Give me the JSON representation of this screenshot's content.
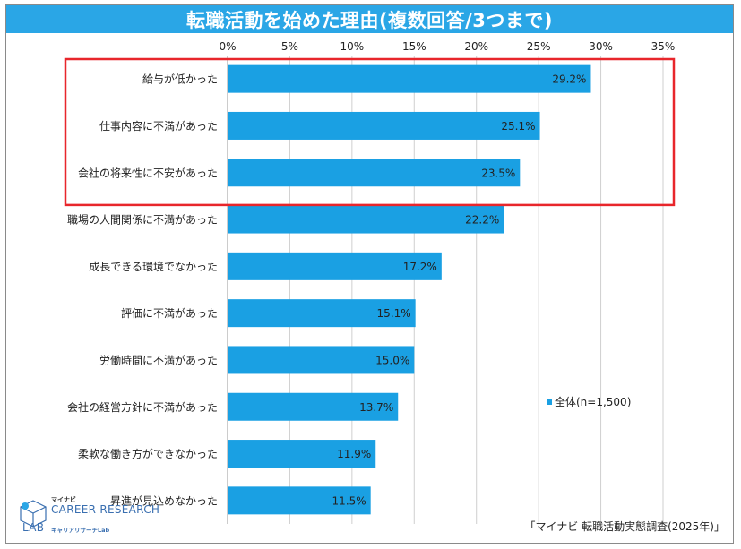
{
  "chart_data": {
    "type": "bar",
    "orientation": "horizontal",
    "title": "転職活動を始めた理由(複数回答/3つまで)",
    "categories": [
      "給与が低かった",
      "仕事内容に不満があった",
      "会社の将来性に不安があった",
      "職場の人間関係に不満があった",
      "成長できる環境でなかった",
      "評価に不満があった",
      "労働時間に不満があった",
      "会社の経営方針に不満があった",
      "柔軟な働き方ができなかった",
      "昇進が見込めなかった"
    ],
    "series": [
      {
        "name": "全体(n=1,500)",
        "values": [
          29.2,
          25.1,
          23.5,
          22.2,
          17.2,
          15.1,
          15.0,
          13.7,
          11.9,
          11.5
        ],
        "labels": [
          "29.2%",
          "25.1%",
          "23.5%",
          "22.2%",
          "17.2%",
          "15.1%",
          "15.0%",
          "13.7%",
          "11.9%",
          "11.5%"
        ]
      }
    ],
    "xlim": [
      0,
      35
    ],
    "xticks": [
      0,
      5,
      10,
      15,
      20,
      25,
      30,
      35
    ],
    "xtick_labels": [
      "0%",
      "5%",
      "10%",
      "15%",
      "20%",
      "25%",
      "30%",
      "35%"
    ],
    "grid": true,
    "legend_position": "right-middle",
    "highlight": {
      "categories": [
        "給与が低かった",
        "仕事内容に不満があった",
        "会社の将来性に不安があった"
      ],
      "color": "#e8262b"
    }
  },
  "colors": {
    "bar": "#1aa0e3",
    "title_bg": "#2aa6e6",
    "highlight": "#e8262b"
  },
  "legend_label": "全体(n=1,500)",
  "source": "「マイナビ 転職活動実態調査(2025年)」",
  "logo": {
    "small": "マイナビ",
    "line1": "CAREER RESEARCH",
    "line2": "LAB",
    "sub": "キャリアリサーチLab"
  }
}
